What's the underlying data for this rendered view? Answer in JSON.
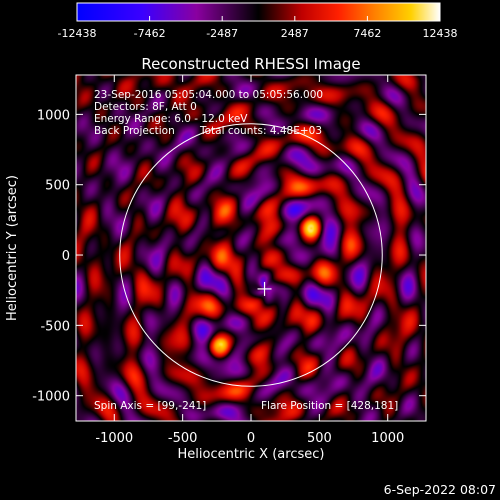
{
  "chart_data": {
    "type": "heatmap",
    "title": "Reconstructed RHESSI Image",
    "xlabel": "Heliocentric X (arcsec)",
    "ylabel": "Heliocentric Y (arcsec)",
    "xlim": [
      -1280,
      1280
    ],
    "ylim": [
      -1180,
      1280
    ],
    "xticks": [
      -1000,
      -500,
      0,
      500,
      1000
    ],
    "yticks": [
      -1000,
      -500,
      0,
      500,
      1000
    ],
    "colorbar": {
      "colormap": "rainbow-2 (blue-purple-red-yellow-white)",
      "range": [
        -12438,
        12438
      ],
      "ticks": [
        "-12438",
        "-7462",
        "-2487",
        "2487",
        "7462",
        "12438"
      ],
      "colors": [
        "#0000ff",
        "#3a00ff",
        "#8a00a0",
        "#000000",
        "#c00000",
        "#ff2000",
        "#ff8000",
        "#ffd000",
        "#ffffff"
      ]
    },
    "annotations": {
      "time_range": "23-Sep-2016 05:05:04.000 to 05:05:56.000",
      "detectors": "Detectors: 8F, Att 0",
      "energy_range": "Energy Range: 6.0 - 12.0 keV",
      "method": "Back Projection",
      "total_counts": "Total counts: 4.48E+03",
      "spin_axis": "Spin Axis = [99,-241]",
      "flare_position": "Flare Position = [428,181]"
    },
    "sources": [
      {
        "x": 440,
        "y": 190,
        "intensity": 12438
      },
      {
        "x": -230,
        "y": -660,
        "intensity": 10500
      }
    ],
    "solar_limb_radius": 960,
    "spin_axis": [
      99,
      -241
    ],
    "flare_position": [
      428,
      181
    ],
    "ring_centers": [
      [
        440,
        190
      ],
      [
        -230,
        -660
      ],
      [
        99,
        -241
      ]
    ]
  },
  "footer": {
    "timestamp": "6-Sep-2022 08:07"
  }
}
